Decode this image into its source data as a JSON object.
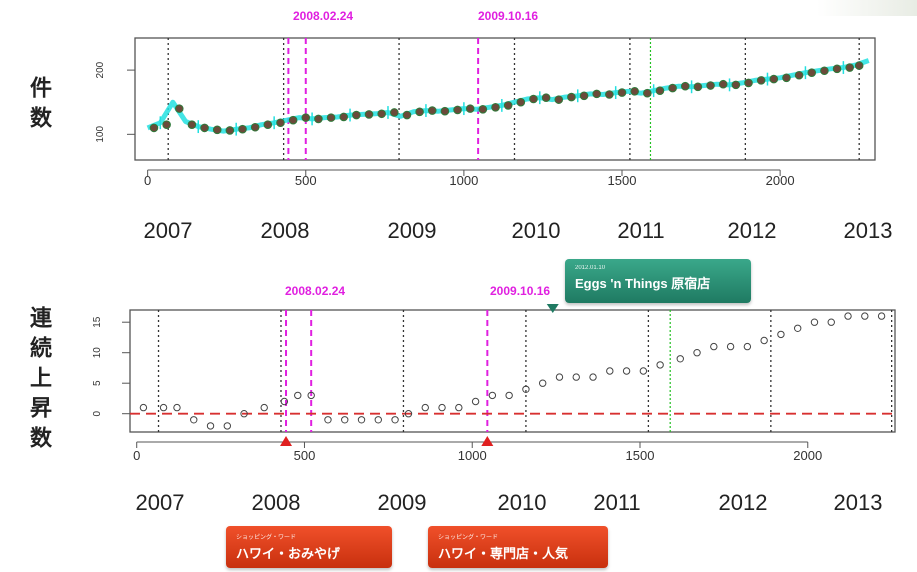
{
  "panels": [
    {
      "id": "top",
      "ylabel": "件数",
      "ytick_labels": [
        "200",
        "100"
      ],
      "ytick_values": [
        200,
        100
      ],
      "ylim": [
        60,
        250
      ],
      "xlim": [
        -40,
        2300
      ],
      "xticks": [
        0,
        500,
        1000,
        1500,
        2000
      ],
      "xtick_labels": [
        "0",
        "500",
        "1000",
        "1500",
        "2000"
      ],
      "vlines_dotted": [
        65,
        430,
        795,
        1160,
        1525,
        1890,
        2250
      ],
      "vlines_magenta": [
        445,
        500,
        1045
      ],
      "vlines_green": [
        1590
      ],
      "date_labels": [
        "2008.02.24",
        "2009.10.16"
      ],
      "year_labels": [
        "2007",
        "2008",
        "2009",
        "2010",
        "2011",
        "2012",
        "2013"
      ]
    },
    {
      "id": "bottom",
      "ylabel": "連続上昇数",
      "ytick_labels": [
        "0",
        "5",
        "10",
        "15"
      ],
      "ytick_values": [
        0,
        5,
        10,
        15
      ],
      "ylim": [
        -3,
        17
      ],
      "xlim": [
        -20,
        2260
      ],
      "xticks": [
        0,
        500,
        1000,
        1500,
        2000
      ],
      "xtick_labels": [
        "0",
        "500",
        "1000",
        "1500",
        "2000"
      ],
      "vlines_dotted": [
        65,
        430,
        795,
        1160,
        1525,
        1890,
        2250
      ],
      "vlines_magenta": [
        445,
        520,
        1045
      ],
      "vlines_green": [
        1590
      ],
      "hline_zero": 0,
      "date_labels": [
        "2008.02.24",
        "2009.10.16"
      ],
      "year_labels": [
        "2007",
        "2008",
        "2009",
        "2010",
        "2011",
        "2012",
        "2013"
      ]
    }
  ],
  "chart_data": [
    {
      "type": "line",
      "ylabel": "件数",
      "xlim": [
        -40,
        2300
      ],
      "ylim": [
        60,
        250
      ],
      "series": [
        {
          "color": "#22e0e0",
          "x": [
            0,
            40,
            80,
            120,
            160,
            200,
            240,
            280,
            320,
            360,
            400,
            440,
            480,
            520,
            560,
            600,
            640,
            680,
            720,
            760,
            800,
            840,
            880,
            920,
            960,
            1000,
            1040,
            1080,
            1120,
            1160,
            1200,
            1240,
            1280,
            1320,
            1360,
            1400,
            1440,
            1480,
            1520,
            1560,
            1600,
            1640,
            1680,
            1720,
            1760,
            1800,
            1840,
            1880,
            1920,
            1960,
            2000,
            2040,
            2080,
            2120,
            2160,
            2200,
            2240,
            2280
          ],
          "y": [
            110,
            118,
            150,
            120,
            112,
            108,
            105,
            108,
            110,
            115,
            118,
            122,
            126,
            124,
            126,
            127,
            130,
            131,
            132,
            134,
            128,
            135,
            137,
            136,
            138,
            140,
            139,
            142,
            145,
            150,
            155,
            157,
            154,
            158,
            160,
            163,
            162,
            165,
            167,
            164,
            168,
            172,
            175,
            174,
            176,
            178,
            177,
            180,
            184,
            186,
            188,
            192,
            196,
            199,
            202,
            204,
            208,
            215
          ]
        }
      ],
      "points": {
        "x": [
          20,
          60,
          100,
          140,
          180,
          220,
          260,
          300,
          340,
          380,
          420,
          460,
          500,
          540,
          580,
          620,
          660,
          700,
          740,
          780,
          820,
          860,
          900,
          940,
          980,
          1020,
          1060,
          1100,
          1140,
          1180,
          1220,
          1260,
          1300,
          1340,
          1380,
          1420,
          1460,
          1500,
          1540,
          1580,
          1620,
          1660,
          1700,
          1740,
          1780,
          1820,
          1860,
          1900,
          1940,
          1980,
          2020,
          2060,
          2100,
          2140,
          2180,
          2220,
          2250
        ],
        "y": [
          110,
          115,
          140,
          115,
          110,
          107,
          106,
          108,
          111,
          115,
          118,
          122,
          126,
          124,
          126,
          127,
          130,
          131,
          132,
          134,
          130,
          135,
          137,
          136,
          138,
          140,
          139,
          142,
          145,
          150,
          155,
          157,
          154,
          158,
          160,
          163,
          162,
          165,
          167,
          164,
          168,
          172,
          175,
          174,
          176,
          178,
          177,
          180,
          184,
          186,
          188,
          192,
          196,
          199,
          202,
          204,
          207
        ]
      }
    },
    {
      "type": "scatter",
      "ylabel": "連続上昇数",
      "xlim": [
        -20,
        2260
      ],
      "ylim": [
        -3,
        17
      ],
      "series": [
        {
          "x": [
            20,
            80,
            120,
            170,
            220,
            270,
            320,
            380,
            440,
            480,
            520,
            570,
            620,
            670,
            720,
            770,
            810,
            860,
            910,
            960,
            1010,
            1060,
            1110,
            1160,
            1210,
            1260,
            1310,
            1360,
            1410,
            1460,
            1510,
            1560,
            1620,
            1670,
            1720,
            1770,
            1820,
            1870,
            1920,
            1970,
            2020,
            2070,
            2120,
            2170,
            2220
          ],
          "y": [
            1,
            1,
            1,
            -1,
            -2,
            -2,
            0,
            1,
            2,
            3,
            3,
            -1,
            -1,
            -1,
            -1,
            -1,
            0,
            1,
            1,
            1,
            2,
            3,
            3,
            4,
            5,
            6,
            6,
            6,
            7,
            7,
            7,
            8,
            9,
            10,
            11,
            11,
            11,
            12,
            13,
            14,
            15,
            15,
            16,
            16,
            16
          ]
        }
      ]
    }
  ],
  "callouts": {
    "green_tag": {
      "small": "2012.01.10",
      "label": "Eggs 'n Things 原宿店"
    },
    "red_tag_1": {
      "small": "ショッピング・ワード",
      "label": "ハワイ・おみやげ"
    },
    "red_tag_2": {
      "small": "ショッピング・ワード",
      "label": "ハワイ・専門店・人気"
    }
  },
  "colors": {
    "dotted_line": "#333333",
    "magenta": "#e020e0",
    "green": "#22c022",
    "zero_line": "#d83030",
    "red_marker": "#e02020",
    "teal_marker": "#1f7a62",
    "date_label": "#e020e0"
  }
}
